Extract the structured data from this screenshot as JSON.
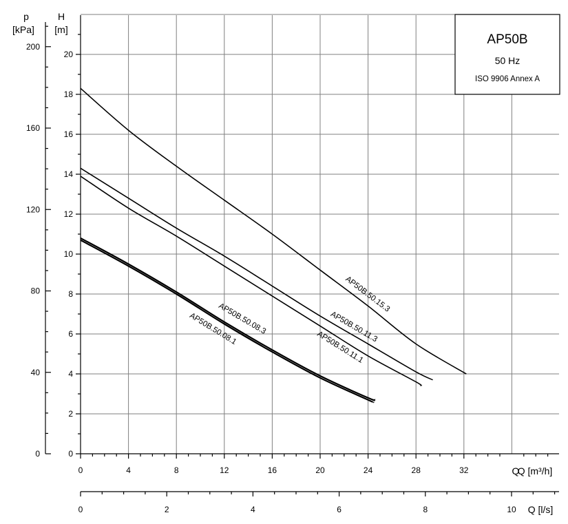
{
  "chart_data": {
    "type": "line",
    "legend_box": {
      "title": "AP50B",
      "frequency": "50 Hz",
      "standard": "ISO 9906 Annex A",
      "placement": "top-right"
    },
    "y_axis": {
      "symbol": "H",
      "unit": "[m]",
      "range": [
        0,
        22
      ],
      "ticks": [
        0,
        2,
        4,
        6,
        8,
        10,
        12,
        14,
        16,
        18,
        20
      ]
    },
    "y2_axis": {
      "symbol": "p",
      "unit": "[kPa]",
      "range": [
        0,
        220
      ],
      "ticks": [
        0,
        40,
        80,
        120,
        160,
        200
      ]
    },
    "x_axis": {
      "label": "Q [m³/h]",
      "range": [
        0,
        36
      ],
      "ticks": [
        0,
        4,
        8,
        12,
        16,
        20,
        24,
        28,
        32
      ],
      "tick_labels": [
        "0",
        "4",
        "8",
        "12",
        "16",
        "20",
        "24",
        "28",
        "32"
      ],
      "extra_label": "Q"
    },
    "x2_axis": {
      "label": "Q [l/s]",
      "range": [
        0,
        10
      ],
      "ticks": [
        0,
        2,
        4,
        6,
        8,
        10
      ],
      "tick_labels": [
        "0",
        "2",
        "4",
        "6",
        "8",
        "10"
      ]
    },
    "grid": true,
    "series": [
      {
        "name": "AP50B.50.15.3",
        "x": [
          0,
          4,
          8,
          12,
          16,
          20,
          24,
          28,
          32.2
        ],
        "y": [
          18.3,
          16.2,
          14.4,
          12.7,
          11.0,
          9.2,
          7.4,
          5.5,
          4.0
        ]
      },
      {
        "name": "AP50B.50.11.3",
        "x": [
          0,
          4,
          8,
          12,
          16,
          20,
          24,
          28,
          29.4
        ],
        "y": [
          14.3,
          12.8,
          11.3,
          9.9,
          8.4,
          6.9,
          5.5,
          4.1,
          3.7
        ]
      },
      {
        "name": "AP50B.50.11.1",
        "x": [
          0,
          4,
          8,
          12,
          16,
          20,
          24,
          28,
          28.4
        ],
        "y": [
          13.9,
          12.3,
          10.9,
          9.4,
          7.9,
          6.4,
          4.9,
          3.6,
          3.4
        ]
      },
      {
        "name": "AP50B.50.08.3",
        "x": [
          0,
          4,
          8,
          12,
          16,
          20,
          24,
          24.6
        ],
        "y": [
          10.8,
          9.5,
          8.1,
          6.6,
          5.2,
          3.9,
          2.8,
          2.7
        ]
      },
      {
        "name": "AP50B.50.08.1",
        "x": [
          0,
          4,
          8,
          12,
          16,
          20,
          24,
          24.4
        ],
        "y": [
          10.7,
          9.4,
          8.0,
          6.5,
          5.1,
          3.8,
          2.7,
          2.6
        ]
      }
    ]
  }
}
